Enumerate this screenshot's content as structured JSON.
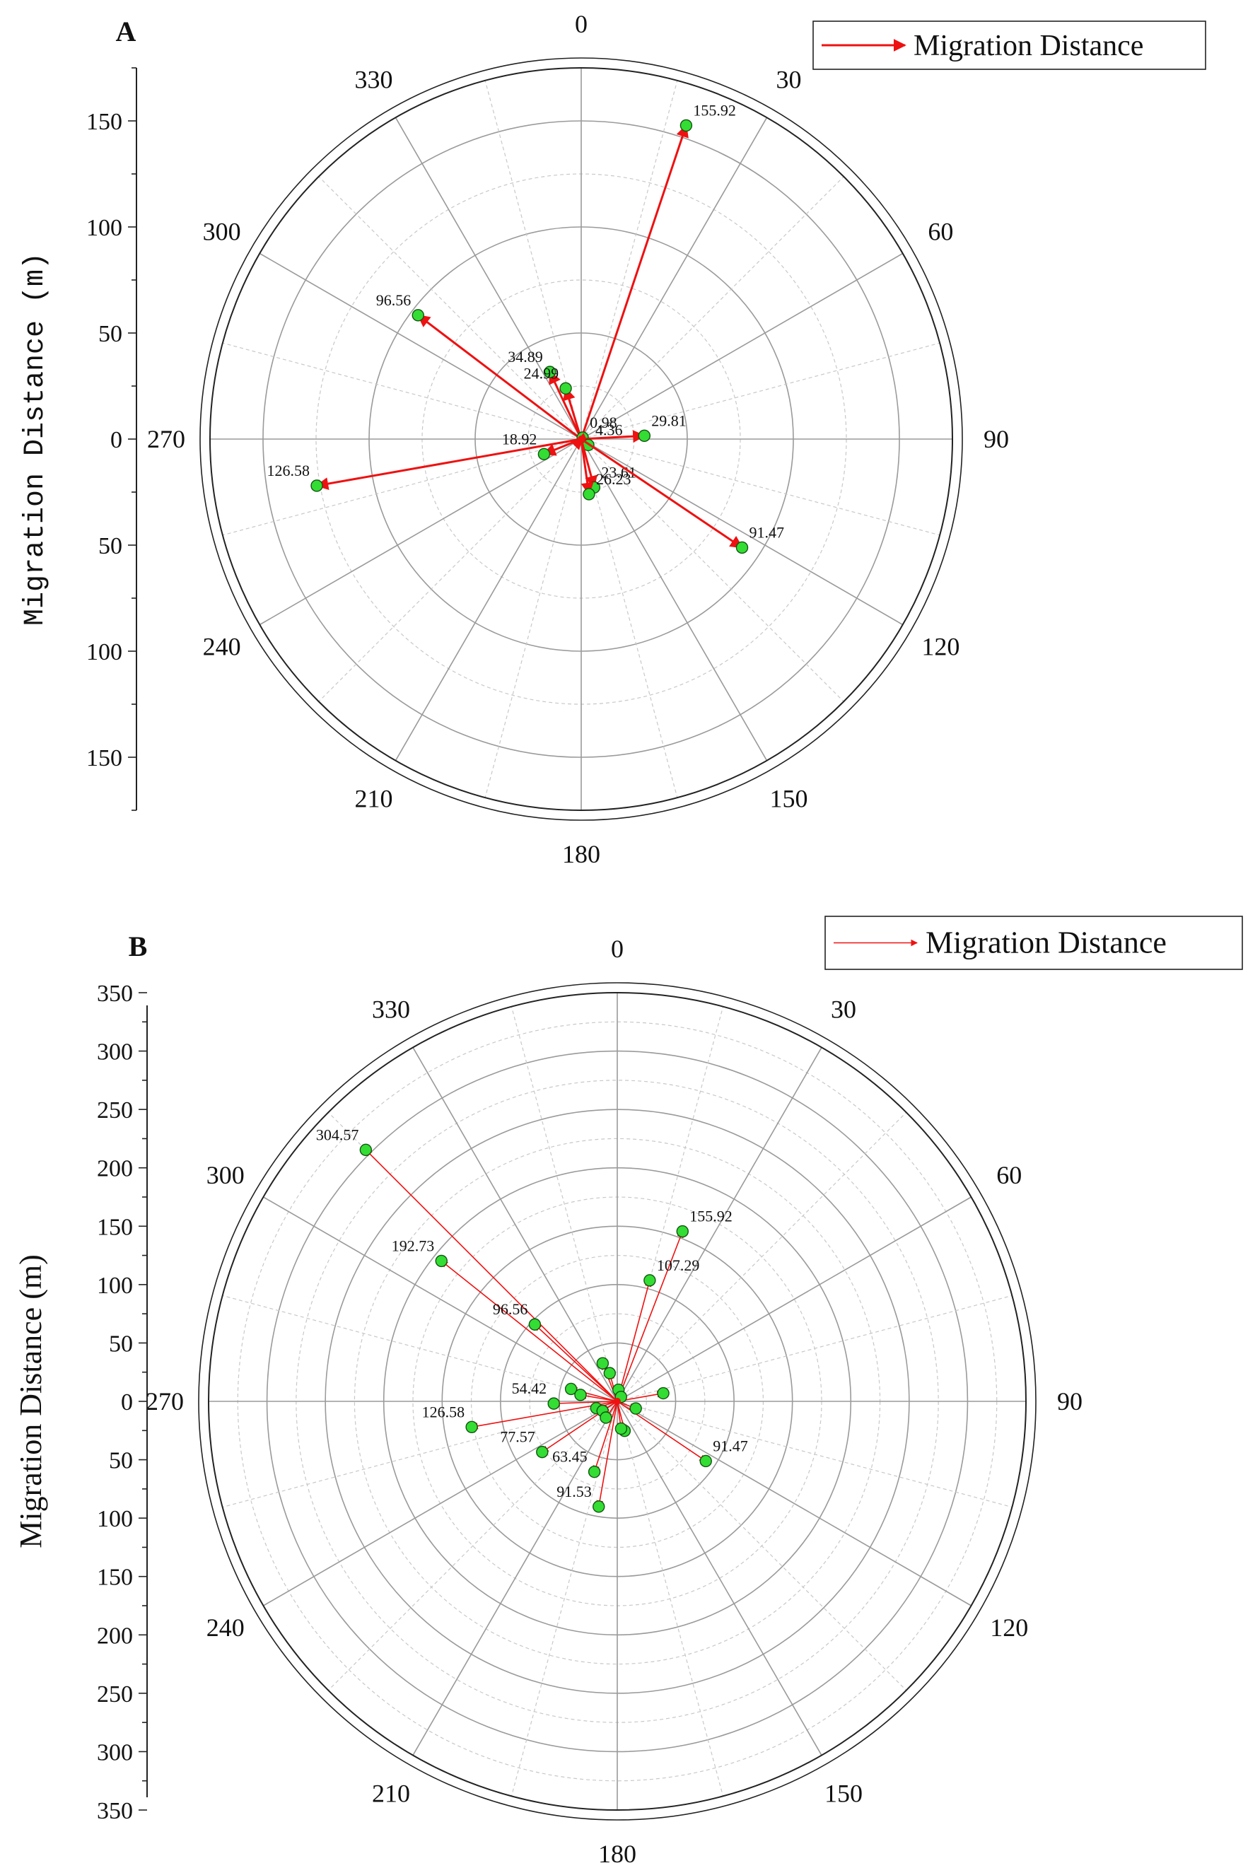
{
  "colors": {
    "vector": "#ee1111",
    "marker_fill": "#33dd33",
    "marker_stroke": "#115511",
    "major_grid": "#9a9a9a",
    "minor_grid": "#c8c8c8",
    "frame": "#222222"
  },
  "chart_data": [
    {
      "panel_label": "A",
      "type": "polar-vector",
      "title": "",
      "ylabel": "Migration Distance (m)",
      "ylabel_style": "mono",
      "legend": {
        "label": "Migration Distance",
        "placement": "top-right"
      },
      "radial_range": [
        0,
        175
      ],
      "radial_ticks": [
        0,
        50,
        100,
        150
      ],
      "radial_ticks_minor_step": 25,
      "angular_ticks": [
        0,
        30,
        60,
        90,
        120,
        150,
        180,
        210,
        240,
        270,
        300,
        330
      ],
      "minor_angle_step": 15,
      "points": [
        {
          "angle": 18.5,
          "distance": 155.92,
          "label": "155.92"
        },
        {
          "angle": 307.2,
          "distance": 96.56,
          "label": "96.56"
        },
        {
          "angle": 335.0,
          "distance": 34.89,
          "label": "34.89"
        },
        {
          "angle": 343.0,
          "distance": 24.99,
          "label": "24.99"
        },
        {
          "angle": 45.0,
          "distance": 0.98,
          "label": "0.98"
        },
        {
          "angle": 87.0,
          "distance": 29.81,
          "label": "29.81",
          "note": "mirror"
        },
        {
          "angle": 248.0,
          "distance": 18.92,
          "label": "18.92"
        },
        {
          "angle": 260.0,
          "distance": 126.58,
          "label": "126.58"
        },
        {
          "angle": 130.0,
          "distance": 4.36,
          "label": "4.36"
        },
        {
          "angle": 165.0,
          "distance": 23.61,
          "label": "23.61"
        },
        {
          "angle": 172.0,
          "distance": 26.23,
          "label": "26.23"
        },
        {
          "angle": 124.0,
          "distance": 91.47,
          "label": "91.47"
        }
      ]
    },
    {
      "panel_label": "B",
      "type": "polar-vector",
      "title": "",
      "ylabel": "Migration Distance (m)",
      "ylabel_style": "serif",
      "legend": {
        "label": "Migration Distance",
        "placement": "top-right"
      },
      "radial_range": [
        0,
        350
      ],
      "radial_ticks": [
        0,
        50,
        100,
        150,
        200,
        250,
        300,
        350
      ],
      "radial_ticks_minor_step": 25,
      "angular_ticks": [
        0,
        30,
        60,
        90,
        120,
        150,
        180,
        210,
        240,
        270,
        300,
        330
      ],
      "minor_angle_step": 15,
      "points": [
        {
          "angle": 315.0,
          "distance": 304.57,
          "label": "304.57"
        },
        {
          "angle": 308.6,
          "distance": 192.73,
          "label": "192.73"
        },
        {
          "angle": 155.92,
          "distance": 0,
          "label": ""
        },
        {
          "angle": 21.0,
          "distance": 155.92,
          "label": "155.92"
        },
        {
          "angle": 15.0,
          "distance": 107.29,
          "label": "107.29"
        },
        {
          "angle": 313.0,
          "distance": 96.56,
          "label": "96.56"
        },
        {
          "angle": 268.0,
          "distance": 54.42,
          "label": "54.42"
        },
        {
          "angle": 260.0,
          "distance": 126.58,
          "label": "126.58"
        },
        {
          "angle": 236.0,
          "distance": 77.57,
          "label": "77.57"
        },
        {
          "angle": 198.0,
          "distance": 63.45,
          "label": "63.45"
        },
        {
          "angle": 190.0,
          "distance": 91.53,
          "label": "91.53"
        },
        {
          "angle": 124.0,
          "distance": 91.47,
          "label": "91.47"
        },
        {
          "angle": 339.0,
          "distance": 34.89,
          "label": ""
        },
        {
          "angle": 345.0,
          "distance": 25.0,
          "label": ""
        },
        {
          "angle": 285.0,
          "distance": 41.0,
          "label": ""
        },
        {
          "angle": 280.0,
          "distance": 32.0,
          "label": ""
        },
        {
          "angle": 252.0,
          "distance": 18.9,
          "label": ""
        },
        {
          "angle": 237.0,
          "distance": 15.0,
          "label": ""
        },
        {
          "angle": 215.0,
          "distance": 17.0,
          "label": ""
        },
        {
          "angle": 166.0,
          "distance": 26.0,
          "label": ""
        },
        {
          "angle": 172.0,
          "distance": 23.6,
          "label": ""
        },
        {
          "angle": 111.0,
          "distance": 17.0,
          "label": ""
        },
        {
          "angle": 80.0,
          "distance": 40.0,
          "label": ""
        },
        {
          "angle": 6.0,
          "distance": 10.0,
          "label": ""
        },
        {
          "angle": 40.0,
          "distance": 5.0,
          "label": ""
        }
      ]
    }
  ]
}
